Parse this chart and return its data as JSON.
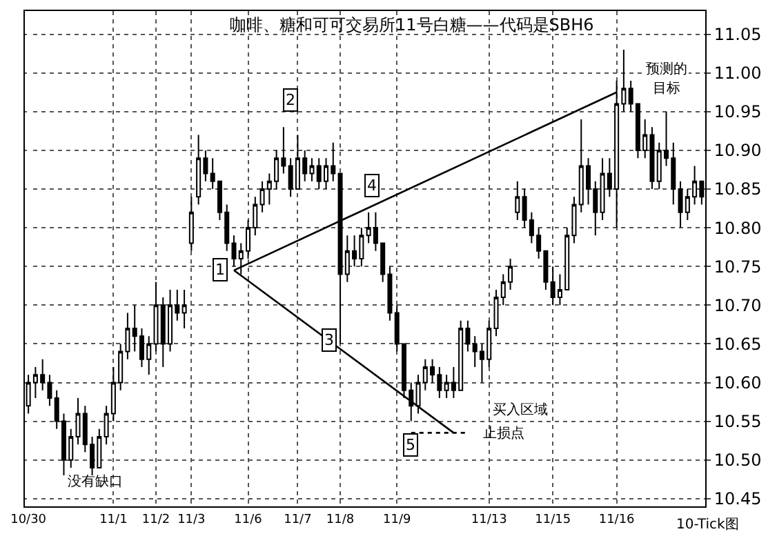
{
  "chart_data": {
    "type": "candlestick",
    "title": "咖啡、糖和可可交易所11号白糖——代码是SBH6",
    "categories": [
      "10/30",
      null,
      null,
      null,
      null,
      null,
      null,
      null,
      null,
      null,
      null,
      null,
      "11/1",
      null,
      null,
      null,
      null,
      null,
      "11/2",
      null,
      null,
      null,
      null,
      "11/3",
      null,
      null,
      null,
      null,
      null,
      null,
      null,
      "11/6",
      null,
      null,
      null,
      null,
      null,
      null,
      "11/7",
      null,
      null,
      null,
      null,
      null,
      "11/8",
      null,
      null,
      null,
      null,
      null,
      null,
      null,
      "11/9",
      null,
      null,
      null,
      null,
      null,
      null,
      null,
      null,
      null,
      null,
      null,
      null,
      "11/13",
      null,
      null,
      null,
      null,
      null,
      null,
      null,
      null,
      "11/15",
      null,
      null,
      null,
      null,
      null,
      null,
      null,
      null,
      "11/16",
      null,
      null,
      null,
      null,
      null,
      null,
      null,
      null,
      null,
      null,
      null,
      null
    ],
    "ohlc": [
      [
        10.57,
        10.61,
        10.56,
        10.6
      ],
      [
        10.6,
        10.62,
        10.58,
        10.61
      ],
      [
        10.61,
        10.63,
        10.59,
        10.6
      ],
      [
        10.6,
        10.61,
        10.57,
        10.58
      ],
      [
        10.58,
        10.59,
        10.54,
        10.55
      ],
      [
        10.55,
        10.56,
        10.48,
        10.5
      ],
      [
        10.5,
        10.54,
        10.49,
        10.53
      ],
      [
        10.53,
        10.58,
        10.52,
        10.56
      ],
      [
        10.56,
        10.57,
        10.51,
        10.52
      ],
      [
        10.52,
        10.53,
        10.48,
        10.49
      ],
      [
        10.49,
        10.54,
        10.49,
        10.53
      ],
      [
        10.53,
        10.57,
        10.52,
        10.56
      ],
      [
        10.56,
        10.62,
        10.55,
        10.6
      ],
      [
        10.6,
        10.65,
        10.59,
        10.64
      ],
      [
        10.64,
        10.69,
        10.63,
        10.67
      ],
      [
        10.67,
        10.7,
        10.64,
        10.66
      ],
      [
        10.66,
        10.67,
        10.62,
        10.63
      ],
      [
        10.63,
        10.66,
        10.61,
        10.65
      ],
      [
        10.65,
        10.73,
        10.64,
        10.7
      ],
      [
        10.7,
        10.71,
        10.62,
        10.65
      ],
      [
        10.65,
        10.72,
        10.64,
        10.7
      ],
      [
        10.7,
        10.72,
        10.68,
        10.69
      ],
      [
        10.69,
        10.72,
        10.67,
        10.7
      ],
      [
        10.78,
        10.84,
        10.77,
        10.82
      ],
      [
        10.84,
        10.92,
        10.83,
        10.89
      ],
      [
        10.89,
        10.9,
        10.86,
        10.87
      ],
      [
        10.87,
        10.89,
        10.85,
        10.86
      ],
      [
        10.86,
        10.86,
        10.81,
        10.82
      ],
      [
        10.82,
        10.83,
        10.77,
        10.78
      ],
      [
        10.78,
        10.79,
        10.75,
        10.76
      ],
      [
        10.76,
        10.78,
        10.74,
        10.77
      ],
      [
        10.77,
        10.81,
        10.76,
        10.8
      ],
      [
        10.8,
        10.84,
        10.79,
        10.83
      ],
      [
        10.83,
        10.86,
        10.82,
        10.85
      ],
      [
        10.85,
        10.87,
        10.83,
        10.86
      ],
      [
        10.86,
        10.9,
        10.85,
        10.89
      ],
      [
        10.89,
        10.93,
        10.87,
        10.88
      ],
      [
        10.88,
        10.89,
        10.84,
        10.85
      ],
      [
        10.85,
        10.92,
        10.85,
        10.89
      ],
      [
        10.89,
        10.9,
        10.86,
        10.87
      ],
      [
        10.87,
        10.89,
        10.86,
        10.88
      ],
      [
        10.88,
        10.89,
        10.85,
        10.86
      ],
      [
        10.86,
        10.89,
        10.85,
        10.88
      ],
      [
        10.88,
        10.91,
        10.86,
        10.87
      ],
      [
        10.87,
        10.87,
        10.65,
        10.74
      ],
      [
        10.74,
        10.79,
        10.73,
        10.77
      ],
      [
        10.77,
        10.79,
        10.75,
        10.76
      ],
      [
        10.76,
        10.8,
        10.75,
        10.79
      ],
      [
        10.79,
        10.82,
        10.78,
        10.8
      ],
      [
        10.8,
        10.82,
        10.77,
        10.78
      ],
      [
        10.78,
        10.78,
        10.73,
        10.74
      ],
      [
        10.74,
        10.75,
        10.68,
        10.69
      ],
      [
        10.69,
        10.7,
        10.64,
        10.65
      ],
      [
        10.65,
        10.65,
        10.58,
        10.59
      ],
      [
        10.59,
        10.6,
        10.55,
        10.57
      ],
      [
        10.57,
        10.61,
        10.56,
        10.6
      ],
      [
        10.6,
        10.63,
        10.59,
        10.62
      ],
      [
        10.62,
        10.63,
        10.6,
        10.61
      ],
      [
        10.61,
        10.62,
        10.58,
        10.59
      ],
      [
        10.59,
        10.61,
        10.58,
        10.6
      ],
      [
        10.6,
        10.62,
        10.58,
        10.59
      ],
      [
        10.59,
        10.68,
        10.59,
        10.67
      ],
      [
        10.67,
        10.68,
        10.64,
        10.65
      ],
      [
        10.65,
        10.66,
        10.62,
        10.64
      ],
      [
        10.64,
        10.65,
        10.6,
        10.63
      ],
      [
        10.63,
        10.68,
        10.62,
        10.67
      ],
      [
        10.67,
        10.72,
        10.66,
        10.71
      ],
      [
        10.71,
        10.74,
        10.7,
        10.73
      ],
      [
        10.73,
        10.76,
        10.72,
        10.75
      ],
      [
        10.82,
        10.86,
        10.81,
        10.84
      ],
      [
        10.84,
        10.85,
        10.8,
        10.81
      ],
      [
        10.81,
        10.82,
        10.78,
        10.79
      ],
      [
        10.79,
        10.8,
        10.76,
        10.77
      ],
      [
        10.77,
        10.77,
        10.72,
        10.73
      ],
      [
        10.73,
        10.75,
        10.7,
        10.71
      ],
      [
        10.71,
        10.74,
        10.7,
        10.72
      ],
      [
        10.72,
        10.8,
        10.72,
        10.79
      ],
      [
        10.79,
        10.84,
        10.78,
        10.83
      ],
      [
        10.83,
        10.94,
        10.82,
        10.88
      ],
      [
        10.88,
        10.89,
        10.83,
        10.85
      ],
      [
        10.85,
        10.86,
        10.79,
        10.82
      ],
      [
        10.82,
        10.89,
        10.81,
        10.87
      ],
      [
        10.87,
        10.89,
        10.84,
        10.85
      ],
      [
        10.85,
        10.99,
        10.8,
        10.96
      ],
      [
        10.96,
        11.03,
        10.95,
        10.98
      ],
      [
        10.98,
        10.99,
        10.95,
        10.96
      ],
      [
        10.96,
        10.96,
        10.89,
        10.9
      ],
      [
        10.9,
        10.94,
        10.89,
        10.92
      ],
      [
        10.92,
        10.93,
        10.85,
        10.86
      ],
      [
        10.86,
        10.91,
        10.85,
        10.9
      ],
      [
        10.9,
        10.95,
        10.88,
        10.89
      ],
      [
        10.89,
        10.91,
        10.83,
        10.85
      ],
      [
        10.85,
        10.86,
        10.8,
        10.82
      ],
      [
        10.82,
        10.85,
        10.81,
        10.84
      ],
      [
        10.84,
        10.88,
        10.83,
        10.86
      ],
      [
        10.86,
        10.86,
        10.83,
        10.84
      ]
    ],
    "color": "#000000",
    "series": [
      {
        "type": "line",
        "color": "#000000",
        "line_style": "solid",
        "values": [
          null,
          null,
          null,
          null,
          null,
          null,
          null,
          null,
          null,
          null,
          null,
          null,
          null,
          null,
          null,
          null,
          null,
          null,
          null,
          null,
          null,
          null,
          null,
          null,
          null,
          null,
          null,
          null,
          null,
          10.745,
          null,
          null,
          null,
          null,
          null,
          null,
          null,
          null,
          null,
          null,
          null,
          null,
          null,
          null,
          null,
          null,
          null,
          null,
          null,
          null,
          null,
          null,
          null,
          null,
          null,
          null,
          null,
          null,
          null,
          null,
          null,
          null,
          null,
          null,
          null,
          null,
          null,
          null,
          null,
          null,
          null,
          null,
          null,
          null,
          null,
          null,
          null,
          null,
          null,
          null,
          null,
          null,
          null,
          10.975,
          null,
          null,
          null,
          null,
          null,
          null,
          null,
          null,
          null,
          null,
          null,
          null
        ]
      },
      {
        "type": "line",
        "color": "#000000",
        "line_style": "solid",
        "values": [
          null,
          null,
          null,
          null,
          null,
          null,
          null,
          null,
          null,
          null,
          null,
          null,
          null,
          null,
          null,
          null,
          null,
          null,
          null,
          null,
          null,
          null,
          null,
          null,
          null,
          null,
          null,
          null,
          null,
          10.745,
          null,
          null,
          null,
          null,
          null,
          null,
          null,
          null,
          null,
          null,
          null,
          null,
          null,
          null,
          null,
          null,
          null,
          null,
          null,
          null,
          null,
          null,
          null,
          null,
          null,
          null,
          null,
          null,
          null,
          null,
          10.535,
          null,
          null,
          null,
          null,
          null,
          null,
          null,
          null,
          null,
          null,
          null,
          null,
          null,
          null,
          null,
          null,
          null,
          null,
          null,
          null,
          null,
          null,
          null,
          null,
          null,
          null,
          null,
          null,
          null,
          null,
          null,
          null,
          null,
          null,
          null
        ]
      },
      {
        "type": "line",
        "color": "#000000",
        "line_style": "dotted",
        "values": [
          null,
          null,
          null,
          null,
          null,
          null,
          null,
          null,
          null,
          null,
          null,
          null,
          null,
          null,
          null,
          null,
          null,
          null,
          null,
          null,
          null,
          null,
          null,
          null,
          null,
          null,
          null,
          null,
          null,
          null,
          null,
          null,
          null,
          null,
          null,
          null,
          null,
          null,
          null,
          null,
          null,
          null,
          null,
          null,
          null,
          null,
          null,
          null,
          null,
          null,
          null,
          null,
          null,
          null,
          10.535,
          null,
          null,
          null,
          null,
          null,
          null,
          null,
          10.535,
          null,
          null,
          null,
          null,
          null,
          null,
          null,
          null,
          null,
          null,
          null,
          null,
          null,
          null,
          null,
          null,
          null,
          null,
          null,
          null,
          null,
          null,
          null,
          null,
          null,
          null,
          null,
          null,
          null,
          null,
          null,
          null,
          null
        ]
      }
    ],
    "annotations": [
      "1",
      "2",
      "3",
      "4",
      "5",
      "预测的",
      "目标",
      "买入区域",
      "止损点",
      "没有缺口",
      "10-Tick图"
    ],
    "ylim": [
      10.44,
      11.08
    ],
    "yticks": [
      10.45,
      {
        "value": 10.5,
        "label": "10.50"
      },
      10.55,
      {
        "value": 10.6,
        "label": "10.60"
      },
      10.65,
      {
        "value": 10.7,
        "label": "10.70"
      },
      10.75,
      {
        "value": 10.8,
        "label": "10.80"
      },
      10.85,
      {
        "value": 10.9,
        "label": "10.90"
      },
      10.95,
      {
        "value": 11.0,
        "label": "11.00"
      },
      11.05
    ],
    "grid": true
  }
}
